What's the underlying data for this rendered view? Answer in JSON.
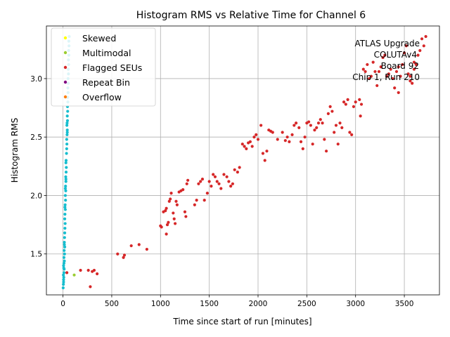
{
  "chart_data": {
    "type": "scatter",
    "title": "Histogram RMS vs Relative Time for Channel 6",
    "xlabel": "Time since start of run [minutes]",
    "ylabel": "Histogram RMS",
    "xlim": [
      -170,
      3860
    ],
    "ylim": [
      1.15,
      3.45
    ],
    "xticks": [
      0,
      500,
      1000,
      1500,
      2000,
      2500,
      3000,
      3500
    ],
    "yticks": [
      1.5,
      2.0,
      2.5,
      3.0
    ],
    "xtick_labels": [
      "0",
      "500",
      "1000",
      "1500",
      "2000",
      "2500",
      "3000",
      "3500"
    ],
    "ytick_labels": [
      "1.5",
      "2.0",
      "2.5",
      "3.0"
    ],
    "grid": true,
    "legend_position": "top-left",
    "legend": [
      {
        "label": "Skewed",
        "color": "#ffff00"
      },
      {
        "label": "Multimodal",
        "color": "#9acd32"
      },
      {
        "label": "Flagged SEUs",
        "color": "#d62728"
      },
      {
        "label": "Repeat Bin",
        "color": "#800080"
      },
      {
        "label": "Overflow",
        "color": "#ff7f0e"
      }
    ],
    "annotations": [
      "ATLAS Upgrade",
      "COLUTAv4",
      "Board 92",
      "Chip 1, Run 210"
    ],
    "series": [
      {
        "name": "Flagged SEUs",
        "color": "#d62728",
        "points": [
          [
            40,
            1.34
          ],
          [
            180,
            1.36
          ],
          [
            260,
            1.36
          ],
          [
            300,
            1.35
          ],
          [
            320,
            1.36
          ],
          [
            350,
            1.33
          ],
          [
            280,
            1.22
          ],
          [
            560,
            1.5
          ],
          [
            620,
            1.47
          ],
          [
            630,
            1.49
          ],
          [
            700,
            1.57
          ],
          [
            780,
            1.58
          ],
          [
            860,
            1.54
          ],
          [
            1000,
            1.74
          ],
          [
            1010,
            1.73
          ],
          [
            1030,
            1.86
          ],
          [
            1050,
            1.87
          ],
          [
            1060,
            1.89
          ],
          [
            1070,
            1.75
          ],
          [
            1080,
            1.77
          ],
          [
            1090,
            1.95
          ],
          [
            1100,
            1.97
          ],
          [
            1110,
            2.02
          ],
          [
            1130,
            1.85
          ],
          [
            1140,
            1.8
          ],
          [
            1150,
            1.76
          ],
          [
            1160,
            1.95
          ],
          [
            1170,
            1.92
          ],
          [
            1190,
            2.03
          ],
          [
            1210,
            2.04
          ],
          [
            1230,
            2.05
          ],
          [
            1250,
            1.86
          ],
          [
            1260,
            1.82
          ],
          [
            1270,
            2.1
          ],
          [
            1280,
            2.13
          ],
          [
            1060,
            1.67
          ],
          [
            1350,
            1.92
          ],
          [
            1370,
            1.96
          ],
          [
            1390,
            2.1
          ],
          [
            1410,
            2.12
          ],
          [
            1430,
            2.14
          ],
          [
            1450,
            1.96
          ],
          [
            1480,
            2.02
          ],
          [
            1500,
            2.12
          ],
          [
            1520,
            2.08
          ],
          [
            1540,
            2.18
          ],
          [
            1560,
            2.16
          ],
          [
            1580,
            2.12
          ],
          [
            1600,
            2.1
          ],
          [
            1620,
            2.06
          ],
          [
            1650,
            2.18
          ],
          [
            1680,
            2.16
          ],
          [
            1700,
            2.12
          ],
          [
            1720,
            2.08
          ],
          [
            1740,
            2.1
          ],
          [
            1760,
            2.22
          ],
          [
            1790,
            2.2
          ],
          [
            1810,
            2.24
          ],
          [
            1840,
            2.44
          ],
          [
            1860,
            2.42
          ],
          [
            1880,
            2.4
          ],
          [
            1900,
            2.45
          ],
          [
            1920,
            2.46
          ],
          [
            1940,
            2.42
          ],
          [
            1960,
            2.5
          ],
          [
            1980,
            2.52
          ],
          [
            2000,
            2.48
          ],
          [
            2030,
            2.6
          ],
          [
            2050,
            2.36
          ],
          [
            2070,
            2.3
          ],
          [
            2090,
            2.38
          ],
          [
            2110,
            2.56
          ],
          [
            2130,
            2.55
          ],
          [
            2150,
            2.54
          ],
          [
            2200,
            2.48
          ],
          [
            2250,
            2.54
          ],
          [
            2280,
            2.47
          ],
          [
            2300,
            2.5
          ],
          [
            2320,
            2.46
          ],
          [
            2350,
            2.52
          ],
          [
            2370,
            2.6
          ],
          [
            2390,
            2.62
          ],
          [
            2420,
            2.58
          ],
          [
            2440,
            2.46
          ],
          [
            2460,
            2.4
          ],
          [
            2480,
            2.5
          ],
          [
            2500,
            2.62
          ],
          [
            2520,
            2.63
          ],
          [
            2540,
            2.6
          ],
          [
            2560,
            2.44
          ],
          [
            2580,
            2.56
          ],
          [
            2600,
            2.58
          ],
          [
            2620,
            2.62
          ],
          [
            2640,
            2.65
          ],
          [
            2660,
            2.62
          ],
          [
            2680,
            2.48
          ],
          [
            2700,
            2.38
          ],
          [
            2720,
            2.7
          ],
          [
            2740,
            2.76
          ],
          [
            2760,
            2.72
          ],
          [
            2780,
            2.54
          ],
          [
            2800,
            2.6
          ],
          [
            2820,
            2.44
          ],
          [
            2840,
            2.62
          ],
          [
            2860,
            2.58
          ],
          [
            2880,
            2.8
          ],
          [
            2900,
            2.78
          ],
          [
            2920,
            2.82
          ],
          [
            2940,
            2.54
          ],
          [
            2960,
            2.52
          ],
          [
            2980,
            2.76
          ],
          [
            3000,
            2.8
          ],
          [
            3040,
            2.82
          ],
          [
            3060,
            2.78
          ],
          [
            3050,
            2.68
          ],
          [
            3080,
            3.08
          ],
          [
            3100,
            3.06
          ],
          [
            3120,
            3.12
          ],
          [
            3140,
            3.0
          ],
          [
            3160,
            3.02
          ],
          [
            3180,
            3.14
          ],
          [
            3200,
            3.06
          ],
          [
            3220,
            2.94
          ],
          [
            3240,
            3.06
          ],
          [
            3260,
            3.1
          ],
          [
            3280,
            3.18
          ],
          [
            3300,
            3.2
          ],
          [
            3320,
            3.02
          ],
          [
            3340,
            3.04
          ],
          [
            3360,
            3.08
          ],
          [
            3380,
            3.0
          ],
          [
            3400,
            2.92
          ],
          [
            3420,
            3.06
          ],
          [
            3440,
            3.1
          ],
          [
            3460,
            3.02
          ],
          [
            3480,
            3.12
          ],
          [
            3500,
            3.22
          ],
          [
            3520,
            3.28
          ],
          [
            3540,
            3.04
          ],
          [
            3560,
            2.98
          ],
          [
            3580,
            2.96
          ],
          [
            3600,
            3.08
          ],
          [
            3620,
            3.12
          ],
          [
            3640,
            3.2
          ],
          [
            3660,
            3.24
          ],
          [
            3680,
            3.34
          ],
          [
            3700,
            3.28
          ],
          [
            3720,
            3.36
          ],
          [
            3560,
            3.02
          ],
          [
            3440,
            2.88
          ],
          [
            3600,
            3.14
          ]
        ]
      },
      {
        "name": "",
        "color": "#17becf",
        "points": [
          [
            2,
            1.21
          ],
          [
            4,
            1.24
          ],
          [
            6,
            1.28
          ],
          [
            8,
            1.3
          ],
          [
            10,
            1.34
          ],
          [
            12,
            1.37
          ],
          [
            6,
            1.4
          ],
          [
            14,
            1.44
          ],
          [
            10,
            1.47
          ],
          [
            16,
            1.5
          ],
          [
            12,
            1.53
          ],
          [
            18,
            1.56
          ],
          [
            14,
            1.6
          ],
          [
            16,
            1.64
          ],
          [
            18,
            1.68
          ],
          [
            20,
            1.72
          ],
          [
            22,
            1.76
          ],
          [
            18,
            1.8
          ],
          [
            20,
            1.84
          ],
          [
            24,
            1.88
          ],
          [
            22,
            1.92
          ],
          [
            26,
            1.96
          ],
          [
            24,
            2.0
          ],
          [
            28,
            2.04
          ],
          [
            26,
            2.08
          ],
          [
            30,
            2.12
          ],
          [
            28,
            2.16
          ],
          [
            32,
            2.2
          ],
          [
            34,
            2.24
          ],
          [
            30,
            2.28
          ],
          [
            36,
            2.36
          ],
          [
            38,
            2.4
          ],
          [
            40,
            2.44
          ],
          [
            38,
            2.48
          ],
          [
            42,
            2.52
          ],
          [
            44,
            2.56
          ],
          [
            40,
            2.6
          ],
          [
            46,
            2.64
          ],
          [
            44,
            2.68
          ],
          [
            48,
            2.72
          ],
          [
            46,
            2.76
          ],
          [
            50,
            2.8
          ],
          [
            48,
            2.84
          ],
          [
            52,
            2.88
          ],
          [
            50,
            2.92
          ],
          [
            54,
            2.96
          ],
          [
            52,
            3.0
          ],
          [
            56,
            3.04
          ],
          [
            54,
            3.08
          ],
          [
            58,
            3.12
          ],
          [
            56,
            3.16
          ],
          [
            60,
            3.2
          ],
          [
            58,
            3.24
          ],
          [
            62,
            3.28
          ],
          [
            60,
            3.32
          ],
          [
            64,
            3.36
          ],
          [
            4,
            1.32
          ],
          [
            8,
            1.38
          ],
          [
            10,
            1.42
          ],
          [
            14,
            1.58
          ],
          [
            20,
            1.9
          ],
          [
            24,
            2.06
          ],
          [
            32,
            2.3
          ],
          [
            42,
            2.62
          ],
          [
            44,
            2.54
          ],
          [
            30,
            2.14
          ],
          [
            6,
            1.26
          ]
        ]
      },
      {
        "name": "Multimodal",
        "color": "#9acd32",
        "points": [
          [
            115,
            1.32
          ]
        ]
      }
    ]
  }
}
